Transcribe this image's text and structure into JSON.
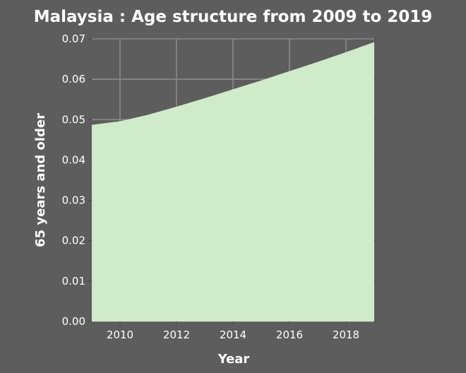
{
  "chart_data": {
    "type": "area",
    "title": "Malaysia : Age structure from 2009 to 2019",
    "xlabel": "Year",
    "ylabel": "65 years and older",
    "x": [
      2009,
      2010,
      2011,
      2012,
      2013,
      2014,
      2015,
      2016,
      2017,
      2018,
      2019
    ],
    "values": [
      0.0487,
      0.0496,
      0.0512,
      0.0532,
      0.0553,
      0.0575,
      0.0597,
      0.062,
      0.0643,
      0.0667,
      0.0692
    ],
    "xlim": [
      2009,
      2019
    ],
    "ylim": [
      0,
      0.07
    ],
    "xticks": [
      "2010",
      "2012",
      "2014",
      "2016",
      "2018"
    ],
    "yticks": [
      "0.00",
      "0.01",
      "0.02",
      "0.03",
      "0.04",
      "0.05",
      "0.06",
      "0.07"
    ],
    "grid": true,
    "colors": {
      "background": "#5d5d5d",
      "fill": "#d0ebca",
      "grid": "#8a8a8a",
      "text": "#ffffff"
    }
  }
}
